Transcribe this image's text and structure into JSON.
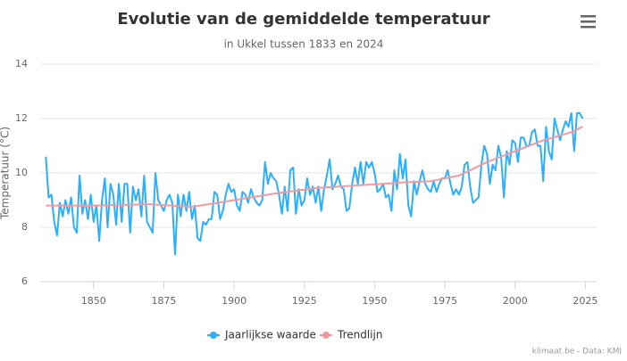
{
  "chart_data": {
    "type": "line",
    "title": "Evolutie van de gemiddelde temperatuur",
    "subtitle": "in Ukkel tussen 1833 en 2024",
    "y_label": "Temperatuur (°C)",
    "credits": "klimaat.be - Data: KMI",
    "x": [
      1833,
      1834,
      1835,
      1836,
      1837,
      1838,
      1839,
      1840,
      1841,
      1842,
      1843,
      1844,
      1845,
      1846,
      1847,
      1848,
      1849,
      1850,
      1851,
      1852,
      1853,
      1854,
      1855,
      1856,
      1857,
      1858,
      1859,
      1860,
      1861,
      1862,
      1863,
      1864,
      1865,
      1866,
      1867,
      1868,
      1869,
      1870,
      1871,
      1872,
      1873,
      1874,
      1875,
      1876,
      1877,
      1878,
      1879,
      1880,
      1881,
      1882,
      1883,
      1884,
      1885,
      1886,
      1887,
      1888,
      1889,
      1890,
      1891,
      1892,
      1893,
      1894,
      1895,
      1896,
      1897,
      1898,
      1899,
      1900,
      1901,
      1902,
      1903,
      1904,
      1905,
      1906,
      1907,
      1908,
      1909,
      1910,
      1911,
      1912,
      1913,
      1914,
      1915,
      1916,
      1917,
      1918,
      1919,
      1920,
      1921,
      1922,
      1923,
      1924,
      1925,
      1926,
      1927,
      1928,
      1929,
      1930,
      1931,
      1932,
      1933,
      1934,
      1935,
      1936,
      1937,
      1938,
      1939,
      1940,
      1941,
      1942,
      1943,
      1944,
      1945,
      1946,
      1947,
      1948,
      1949,
      1950,
      1951,
      1952,
      1953,
      1954,
      1955,
      1956,
      1957,
      1958,
      1959,
      1960,
      1961,
      1962,
      1963,
      1964,
      1965,
      1966,
      1967,
      1968,
      1969,
      1970,
      1971,
      1972,
      1973,
      1974,
      1975,
      1976,
      1977,
      1978,
      1979,
      1980,
      1981,
      1982,
      1983,
      1984,
      1985,
      1986,
      1987,
      1988,
      1989,
      1990,
      1991,
      1992,
      1993,
      1994,
      1995,
      1996,
      1997,
      1998,
      1999,
      2000,
      2001,
      2002,
      2003,
      2004,
      2005,
      2006,
      2007,
      2008,
      2009,
      2010,
      2011,
      2012,
      2013,
      2014,
      2015,
      2016,
      2017,
      2018,
      2019,
      2020,
      2021,
      2022,
      2023,
      2024
    ],
    "series": [
      {
        "name": "Jaarlijkse waarde",
        "color": "#2caffe",
        "values": [
          10.6,
          9.1,
          9.2,
          8.2,
          7.7,
          8.9,
          8.4,
          9.0,
          8.5,
          9.1,
          8.0,
          7.8,
          9.9,
          8.5,
          9.0,
          8.3,
          9.2,
          8.2,
          8.8,
          7.5,
          9.0,
          9.8,
          8.0,
          9.6,
          9.2,
          8.1,
          9.6,
          8.2,
          9.6,
          9.6,
          7.8,
          9.5,
          9.0,
          9.4,
          8.4,
          9.9,
          8.2,
          8.0,
          7.8,
          10.0,
          9.0,
          8.8,
          8.6,
          9.0,
          9.2,
          8.9,
          7.0,
          9.2,
          8.4,
          9.2,
          8.6,
          9.3,
          8.3,
          8.8,
          7.6,
          7.5,
          8.2,
          8.1,
          8.3,
          8.3,
          9.3,
          9.2,
          8.3,
          8.6,
          9.2,
          9.6,
          9.3,
          9.4,
          8.8,
          8.6,
          9.3,
          9.2,
          8.9,
          9.4,
          9.1,
          8.9,
          8.8,
          9.0,
          10.4,
          9.6,
          10.0,
          9.8,
          9.7,
          9.2,
          8.5,
          9.5,
          8.6,
          10.1,
          10.2,
          8.5,
          9.4,
          8.8,
          9.0,
          9.8,
          9.2,
          9.5,
          8.9,
          9.5,
          8.6,
          9.4,
          9.9,
          10.5,
          9.4,
          9.6,
          9.9,
          9.5,
          9.4,
          8.6,
          8.7,
          9.6,
          10.2,
          9.6,
          10.4,
          9.6,
          10.4,
          10.2,
          10.4,
          10.0,
          9.3,
          9.4,
          9.6,
          9.1,
          9.2,
          8.6,
          10.1,
          9.4,
          10.7,
          9.8,
          10.5,
          8.8,
          8.4,
          9.7,
          9.2,
          9.7,
          10.1,
          9.6,
          9.4,
          9.3,
          9.7,
          9.3,
          9.6,
          9.8,
          9.8,
          10.1,
          9.6,
          9.2,
          9.4,
          9.2,
          9.5,
          10.3,
          10.4,
          9.5,
          8.9,
          9.0,
          9.1,
          10.3,
          11.0,
          10.7,
          9.6,
          10.3,
          10.1,
          11.0,
          10.6,
          9.1,
          10.8,
          10.3,
          11.2,
          11.1,
          10.4,
          11.3,
          11.3,
          11.0,
          11.0,
          11.5,
          11.6,
          11.0,
          11.0,
          9.7,
          11.7,
          10.8,
          10.5,
          12.0,
          11.6,
          11.2,
          11.6,
          11.9,
          11.7,
          12.2,
          10.8,
          12.2,
          12.2,
          12.0
        ]
      },
      {
        "name": "Trendlijn",
        "color": "#f19a9f",
        "x": [
          1833,
          1850,
          1870,
          1885,
          1900,
          1915,
          1930,
          1945,
          1960,
          1970,
          1980,
          1990,
          2000,
          2010,
          2020,
          2024
        ],
        "values": [
          8.8,
          8.8,
          8.85,
          8.75,
          9.0,
          9.25,
          9.45,
          9.55,
          9.65,
          9.7,
          9.9,
          10.4,
          10.8,
          11.2,
          11.5,
          11.7
        ]
      }
    ],
    "xlim": [
      1831,
      2029
    ],
    "xticks": [
      1850,
      1875,
      1900,
      1925,
      1950,
      1975,
      2000,
      2025
    ],
    "ylim": [
      6,
      14
    ],
    "yticks": [
      6,
      8,
      10,
      12,
      14
    ],
    "grid": true
  }
}
